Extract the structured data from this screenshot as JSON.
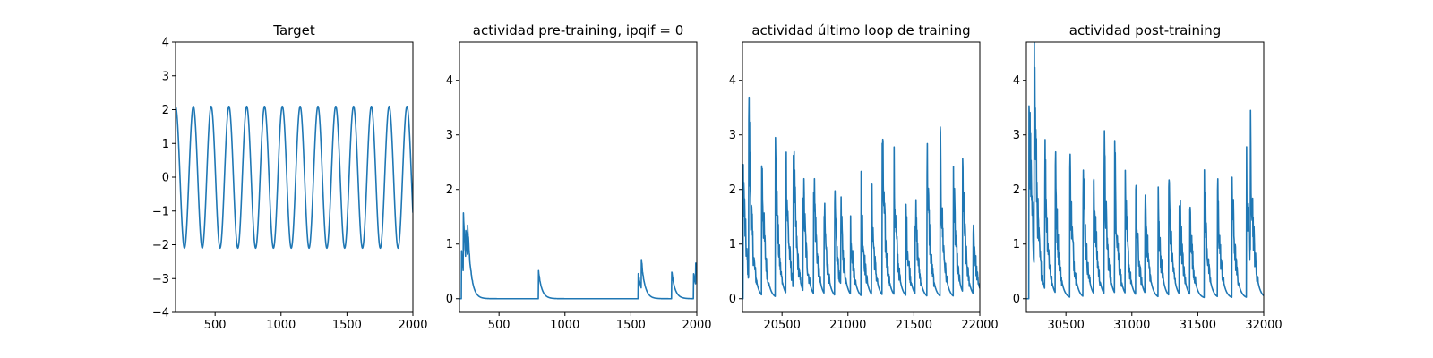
{
  "colors": {
    "series": "#1f77b4",
    "axes": "#000000",
    "background": "#ffffff"
  },
  "chart_data": [
    {
      "type": "line",
      "title": "Target",
      "xlim": [
        200,
        2000
      ],
      "ylim": [
        -4,
        4
      ],
      "xticks": [
        500,
        1000,
        1500,
        2000
      ],
      "yticks": [
        -4,
        -3,
        -2,
        -1,
        0,
        1,
        2,
        3,
        4
      ],
      "grid": false,
      "series": [
        {
          "kind": "sine",
          "x_start": 200,
          "x_end": 2000,
          "amplitude": 2.1,
          "period": 135,
          "phase": 200
        }
      ]
    },
    {
      "type": "line",
      "title": "actividad pre-training, ipqif = 0",
      "xlim": [
        200,
        2000
      ],
      "ylim": [
        -0.25,
        4.7
      ],
      "xticks": [
        500,
        1000,
        1500,
        2000
      ],
      "yticks": [
        0,
        1,
        2,
        3,
        4
      ],
      "grid": false,
      "series": [
        {
          "kind": "spikes",
          "x_start": 200,
          "x_end": 2000,
          "decay": 25,
          "noise": 0.05,
          "events": [
            [
              215,
              0.9
            ],
            [
              230,
              1.02
            ],
            [
              248,
              0.55
            ],
            [
              262,
              0.63
            ],
            [
              800,
              0.5
            ],
            [
              1555,
              0.5
            ],
            [
              1580,
              0.54
            ],
            [
              1810,
              0.5
            ],
            [
              1975,
              0.5
            ],
            [
              1992,
              0.4
            ]
          ]
        }
      ]
    },
    {
      "type": "line",
      "title": "actividad último loop de training",
      "xlim": [
        20200,
        22000
      ],
      "ylim": [
        -0.25,
        4.7
      ],
      "xticks": [
        20500,
        21000,
        21500,
        22000
      ],
      "yticks": [
        0,
        1,
        2,
        3,
        4
      ],
      "grid": false,
      "series": [
        {
          "kind": "spikes",
          "x_start": 20200,
          "x_end": 22000,
          "decay": 25,
          "noise": 0.3,
          "events": [
            [
              20205,
              2.4
            ],
            [
              20248,
              2.95
            ],
            [
              20345,
              2.55
            ],
            [
              20450,
              2.5
            ],
            [
              20530,
              2.4
            ],
            [
              20585,
              2.6
            ],
            [
              20660,
              2.1
            ],
            [
              20740,
              2.3
            ],
            [
              20820,
              1.5
            ],
            [
              20900,
              1.6
            ],
            [
              20945,
              1.4
            ],
            [
              21020,
              1.3
            ],
            [
              21100,
              1.9
            ],
            [
              21180,
              1.7
            ],
            [
              21260,
              2.8
            ],
            [
              21350,
              2.1
            ],
            [
              21440,
              1.45
            ],
            [
              21510,
              1.7
            ],
            [
              21600,
              2.5
            ],
            [
              21700,
              2.5
            ],
            [
              21800,
              2.1
            ],
            [
              21870,
              2.15
            ],
            [
              21950,
              1.3
            ]
          ]
        }
      ]
    },
    {
      "type": "line",
      "title": "actividad post-training",
      "xlim": [
        30200,
        32000
      ],
      "ylim": [
        -0.25,
        4.7
      ],
      "xticks": [
        30500,
        31000,
        31500,
        32000
      ],
      "yticks": [
        0,
        1,
        2,
        3,
        4
      ],
      "grid": false,
      "series": [
        {
          "kind": "spikes",
          "x_start": 30200,
          "x_end": 32000,
          "decay": 25,
          "noise": 0.3,
          "events": [
            [
              30220,
              3.9
            ],
            [
              30260,
              3.6
            ],
            [
              30340,
              2.5
            ],
            [
              30420,
              2.2
            ],
            [
              30530,
              2.35
            ],
            [
              30630,
              2.4
            ],
            [
              30710,
              2.2
            ],
            [
              30790,
              2.55
            ],
            [
              30870,
              2.4
            ],
            [
              30950,
              1.8
            ],
            [
              31030,
              1.7
            ],
            [
              31100,
              1.9
            ],
            [
              31200,
              1.6
            ],
            [
              31280,
              2.1
            ],
            [
              31360,
              1.9
            ],
            [
              31440,
              1.6
            ],
            [
              31550,
              2.05
            ],
            [
              31650,
              1.9
            ],
            [
              31760,
              2.1
            ],
            [
              31870,
              2.15
            ],
            [
              31900,
              2.35
            ]
          ]
        }
      ]
    }
  ]
}
